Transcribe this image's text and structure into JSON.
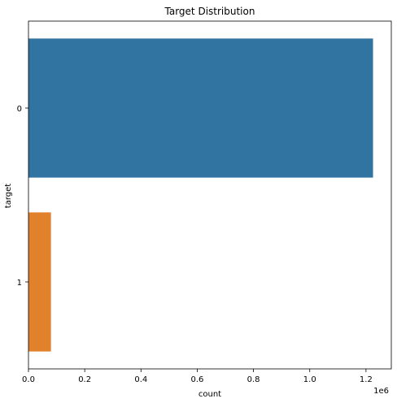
{
  "chart_data": {
    "type": "bar",
    "orientation": "horizontal",
    "title": "Target Distribution",
    "xlabel": "count",
    "ylabel": "target",
    "x_offset_label": "1e6",
    "categories": [
      "0",
      "1"
    ],
    "values": [
      1225000,
      80000
    ],
    "colors": [
      "#3274a1",
      "#e1812c"
    ],
    "xlim": [
      0,
      1290000
    ],
    "xticks": [
      0,
      200000,
      400000,
      600000,
      800000,
      1000000,
      1200000
    ],
    "xtick_labels": [
      "0.0",
      "0.2",
      "0.4",
      "0.6",
      "0.8",
      "1.0",
      "1.2"
    ],
    "grid": false,
    "legend": false
  }
}
